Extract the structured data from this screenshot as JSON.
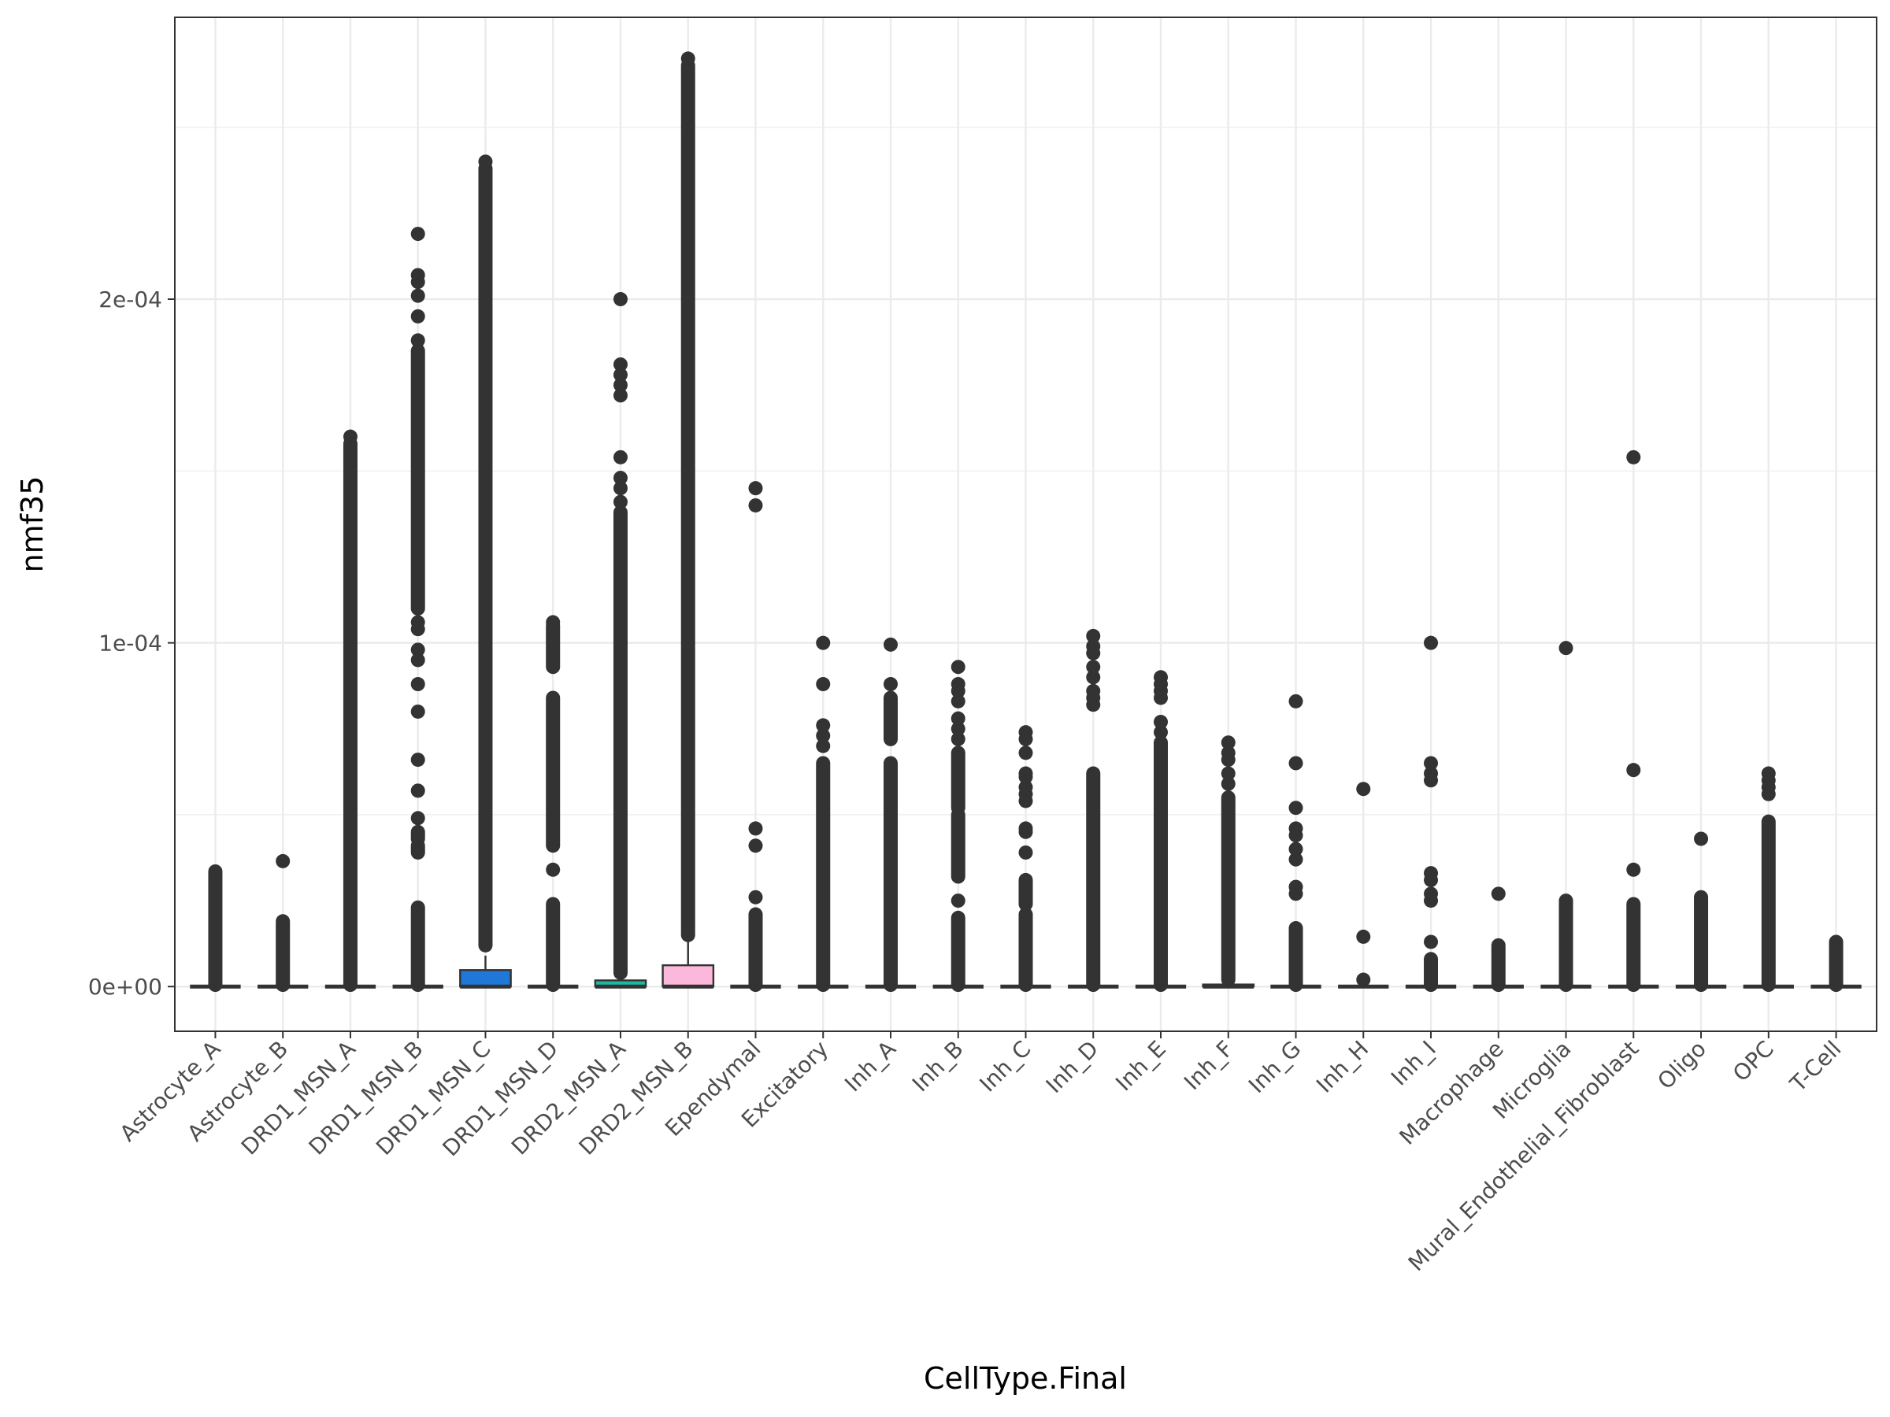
{
  "chart_data": {
    "type": "box",
    "title": "",
    "xlabel": "CellType.Final",
    "ylabel": "nmf35",
    "ylim": [
      -1.3e-05,
      0.000282
    ],
    "yticks": [
      {
        "value": 0,
        "label": "0e+00"
      },
      {
        "value": 0.0001,
        "label": "1e-04"
      },
      {
        "value": 0.0002,
        "label": "2e-04"
      }
    ],
    "grid": true,
    "legend": "none",
    "categories": [
      "Astrocyte_A",
      "Astrocyte_B",
      "DRD1_MSN_A",
      "DRD1_MSN_B",
      "DRD1_MSN_C",
      "DRD1_MSN_D",
      "DRD2_MSN_A",
      "DRD2_MSN_B",
      "Ependymal",
      "Excitatory",
      "Inh_A",
      "Inh_B",
      "Inh_C",
      "Inh_D",
      "Inh_E",
      "Inh_F",
      "Inh_G",
      "Inh_H",
      "Inh_I",
      "Macrophage",
      "Microglia",
      "Mural_Endothelial_Fibroblast",
      "Oligo",
      "OPC",
      "T-Cell"
    ],
    "boxes": [
      {
        "category": "Astrocyte_A",
        "q1": 0,
        "median": 0,
        "q3": 0,
        "whisker_high": 0,
        "fill": "#F8766D",
        "outlier_bands": [
          [
            5e-07,
            3.3e-05
          ]
        ],
        "outliers": [
          3.35e-05
        ]
      },
      {
        "category": "Astrocyte_B",
        "q1": 0,
        "median": 0,
        "q3": 0,
        "whisker_high": 0,
        "fill": "#E7861B",
        "outlier_bands": [
          [
            5e-07,
            1.9e-05
          ]
        ],
        "outliers": [
          3.65e-05
        ]
      },
      {
        "category": "DRD1_MSN_A",
        "q1": 0,
        "median": 0,
        "q3": 0,
        "whisker_high": 0,
        "fill": "#D39200",
        "outlier_bands": [
          [
            5e-07,
            0.000158
          ]
        ],
        "outliers": [
          0.00016
        ]
      },
      {
        "category": "DRD1_MSN_B",
        "q1": 0,
        "median": 0,
        "q3": 0,
        "whisker_high": 0,
        "fill": "#B79F00",
        "outlier_bands": [
          [
            5e-07,
            2.3e-05
          ],
          [
            3.9e-05,
            4.1e-05
          ],
          [
            4.3e-05,
            4.5e-05
          ],
          [
            0.00011,
            0.000185
          ]
        ],
        "outliers": [
          0.000201,
          0.000205,
          0.000207,
          0.000219,
          0.000195,
          0.000188,
          0.000106,
          0.000104,
          9.8e-05,
          9.5e-05,
          8.8e-05,
          8e-05,
          6.6e-05,
          5.7e-05,
          4.9e-05
        ]
      },
      {
        "category": "DRD1_MSN_C",
        "q1": 0,
        "median": 0,
        "q3": 4.8e-06,
        "whisker_high": 9e-06,
        "fill": "#1F78D8",
        "outlier_bands": [
          [
            1.2e-05,
            0.000238
          ]
        ],
        "outliers": [
          0.00024
        ]
      },
      {
        "category": "DRD1_MSN_D",
        "q1": 0,
        "median": 0,
        "q3": 0,
        "whisker_high": 0,
        "fill": "#00BA38",
        "outlier_bands": [
          [
            5e-07,
            2.4e-05
          ],
          [
            4.1e-05,
            8.4e-05
          ],
          [
            9.3e-05,
            0.000105
          ]
        ],
        "outliers": [
          3.4e-05,
          0.000106
        ]
      },
      {
        "category": "DRD2_MSN_A",
        "q1": 0,
        "median": 0,
        "q3": 1.8e-06,
        "whisker_high": 2.5e-06,
        "fill": "#1FB7A5",
        "outlier_bands": [
          [
            4e-06,
            0.000138
          ]
        ],
        "outliers": [
          0.000141,
          0.000145,
          0.000148,
          0.000154,
          0.000172,
          0.000175,
          0.000178,
          0.000181,
          0.0002
        ]
      },
      {
        "category": "DRD2_MSN_B",
        "q1": 0,
        "median": 0,
        "q3": 6.2e-06,
        "whisker_high": 1.3e-05,
        "fill": "#FCB8DA",
        "outlier_bands": [
          [
            1.5e-05,
            0.000268
          ]
        ],
        "outliers": [
          0.00027
        ]
      },
      {
        "category": "Ependymal",
        "q1": 0,
        "median": 0,
        "q3": 0,
        "whisker_high": 0,
        "fill": "#00BFC4",
        "outlier_bands": [
          [
            5e-07,
            2.1e-05
          ]
        ],
        "outliers": [
          2.6e-05,
          4.1e-05,
          4.6e-05,
          0.00014,
          0.000145
        ]
      },
      {
        "category": "Excitatory",
        "q1": 0,
        "median": 0,
        "q3": 0,
        "whisker_high": 0,
        "fill": "#00B9E3",
        "outlier_bands": [
          [
            5e-07,
            6.5e-05
          ]
        ],
        "outliers": [
          7e-05,
          7.3e-05,
          7.6e-05,
          8.8e-05,
          0.0001
        ]
      },
      {
        "category": "Inh_A",
        "q1": 0,
        "median": 0,
        "q3": 0,
        "whisker_high": 0,
        "fill": "#00ADFA",
        "outlier_bands": [
          [
            5e-07,
            6.5e-05
          ],
          [
            7.2e-05,
            8.4e-05
          ]
        ],
        "outliers": [
          8.8e-05,
          9.95e-05
        ]
      },
      {
        "category": "Inh_B",
        "q1": 0,
        "median": 0,
        "q3": 0,
        "whisker_high": 0,
        "fill": "#619CFF",
        "outlier_bands": [
          [
            5e-07,
            2e-05
          ],
          [
            3.2e-05,
            5e-05
          ],
          [
            5.2e-05,
            6.8e-05
          ]
        ],
        "outliers": [
          2.5e-05,
          7.2e-05,
          7.5e-05,
          7.8e-05,
          8.3e-05,
          8.6e-05,
          8.8e-05,
          9.3e-05
        ]
      },
      {
        "category": "Inh_C",
        "q1": 0,
        "median": 0,
        "q3": 0,
        "whisker_high": 0,
        "fill": "#AE87FF",
        "outlier_bands": [
          [
            5e-07,
            2.1e-05
          ],
          [
            2.4e-05,
            3.1e-05
          ]
        ],
        "outliers": [
          3.9e-05,
          4.5e-05,
          4.6e-05,
          5.4e-05,
          5.6e-05,
          5.8e-05,
          6.1e-05,
          6.2e-05,
          6.8e-05,
          7.2e-05,
          7.4e-05
        ]
      },
      {
        "category": "Inh_D",
        "q1": 0,
        "median": 0,
        "q3": 0,
        "whisker_high": 0,
        "fill": "#DB72FB",
        "outlier_bands": [
          [
            5e-07,
            6.2e-05
          ]
        ],
        "outliers": [
          8.2e-05,
          8.4e-05,
          8.6e-05,
          9e-05,
          9.3e-05,
          9.7e-05,
          9.9e-05,
          0.000102
        ]
      },
      {
        "category": "Inh_E",
        "q1": 0,
        "median": 0,
        "q3": 0,
        "whisker_high": 0,
        "fill": "#F564E3",
        "outlier_bands": [
          [
            5e-07,
            7.1e-05
          ]
        ],
        "outliers": [
          7.4e-05,
          7.7e-05,
          8.4e-05,
          8.6e-05,
          8.8e-05,
          9e-05
        ]
      },
      {
        "category": "Inh_F",
        "q1": 0,
        "median": 0,
        "q3": 6e-07,
        "whisker_high": 1.2e-06,
        "fill": "#FF61C3",
        "outlier_bands": [
          [
            2e-06,
            5.5e-05
          ]
        ],
        "outliers": [
          5.9e-05,
          6.2e-05,
          6.6e-05,
          6.8e-05,
          7.1e-05
        ]
      },
      {
        "category": "Inh_G",
        "q1": 0,
        "median": 0,
        "q3": 0,
        "whisker_high": 0,
        "fill": "#FF699C",
        "outlier_bands": [
          [
            5e-07,
            1.7e-05
          ]
        ],
        "outliers": [
          2.7e-05,
          2.9e-05,
          3.7e-05,
          4e-05,
          4.4e-05,
          4.6e-05,
          5.2e-05,
          6.5e-05,
          8.3e-05
        ]
      },
      {
        "category": "Inh_H",
        "q1": 0,
        "median": 0,
        "q3": 0,
        "whisker_high": 0,
        "fill": "#F8766D",
        "outlier_bands": [],
        "outliers": [
          2e-06,
          1.45e-05,
          5.75e-05
        ]
      },
      {
        "category": "Inh_I",
        "q1": 0,
        "median": 0,
        "q3": 0,
        "whisker_high": 0,
        "fill": "#E7861B",
        "outlier_bands": [
          [
            5e-07,
            8e-06
          ]
        ],
        "outliers": [
          1.3e-05,
          2.5e-05,
          2.7e-05,
          3.1e-05,
          3.3e-05,
          6e-05,
          6.2e-05,
          6.5e-05,
          0.0001
        ]
      },
      {
        "category": "Macrophage",
        "q1": 0,
        "median": 0,
        "q3": 0,
        "whisker_high": 0,
        "fill": "#D39200",
        "outlier_bands": [
          [
            5e-07,
            1.2e-05
          ]
        ],
        "outliers": [
          2.7e-05
        ]
      },
      {
        "category": "Microglia",
        "q1": 0,
        "median": 0,
        "q3": 0,
        "whisker_high": 0,
        "fill": "#B79F00",
        "outlier_bands": [
          [
            5e-07,
            2.5e-05
          ]
        ],
        "outliers": [
          9.85e-05
        ]
      },
      {
        "category": "Mural_Endothelial_Fibroblast",
        "q1": 0,
        "median": 0,
        "q3": 0,
        "whisker_high": 0,
        "fill": "#7CAE00",
        "outlier_bands": [
          [
            5e-07,
            2.4e-05
          ]
        ],
        "outliers": [
          3.4e-05,
          6.3e-05,
          0.000154
        ]
      },
      {
        "category": "Oligo",
        "q1": 0,
        "median": 0,
        "q3": 0,
        "whisker_high": 0,
        "fill": "#00BA38",
        "outlier_bands": [
          [
            5e-07,
            2.6e-05
          ]
        ],
        "outliers": [
          4.3e-05
        ]
      },
      {
        "category": "OPC",
        "q1": 0,
        "median": 0,
        "q3": 0,
        "whisker_high": 0,
        "fill": "#00C08B",
        "outlier_bands": [
          [
            5e-07,
            4.8e-05
          ]
        ],
        "outliers": [
          5.6e-05,
          5.8e-05,
          6e-05,
          6.2e-05
        ]
      },
      {
        "category": "T-Cell",
        "q1": 0,
        "median": 0,
        "q3": 0,
        "whisker_high": 0,
        "fill": "#00BFC4",
        "outlier_bands": [
          [
            5e-07,
            1.3e-05
          ]
        ],
        "outliers": []
      }
    ]
  }
}
